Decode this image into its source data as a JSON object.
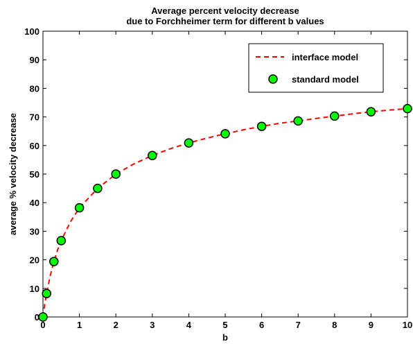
{
  "chart_data": {
    "type": "line",
    "title": [
      "Average percent velocity decrease",
      "due to Forchheimer term for different b values"
    ],
    "xlabel": "b",
    "ylabel": "average % velocity decrease",
    "xlim": [
      0,
      10
    ],
    "ylim": [
      0,
      100
    ],
    "xticks": [
      0,
      1,
      2,
      3,
      4,
      5,
      6,
      7,
      8,
      9,
      10
    ],
    "yticks": [
      0,
      10,
      20,
      30,
      40,
      50,
      60,
      70,
      80,
      90,
      100
    ],
    "grid": false,
    "legend_position": "top-right",
    "series": [
      {
        "name": "interface model",
        "style": "dashed-line",
        "color": "#ff0000",
        "x": [
          0,
          0.05,
          0.1,
          0.2,
          0.3,
          0.4,
          0.5,
          0.75,
          1,
          1.5,
          2,
          2.5,
          3,
          3.5,
          4,
          4.5,
          5,
          5.5,
          6,
          6.5,
          7,
          7.5,
          8,
          8.5,
          9,
          9.5,
          10
        ],
        "y": [
          0,
          4.5,
          8.2,
          14.5,
          19.4,
          23.4,
          26.7,
          33.2,
          38.2,
          45.0,
          50.0,
          53.6,
          56.5,
          58.9,
          60.9,
          62.6,
          64.1,
          65.5,
          66.7,
          67.8,
          68.6,
          69.5,
          70.3,
          71.1,
          71.8,
          72.4,
          72.9
        ]
      },
      {
        "name": "standard model",
        "style": "markers",
        "color": "#00ff00",
        "edge_color": "#000000",
        "x": [
          0,
          0.1,
          0.3,
          0.5,
          1,
          1.5,
          2,
          3,
          4,
          5,
          6,
          7,
          8,
          9,
          10
        ],
        "y": [
          0,
          8.2,
          19.4,
          26.7,
          38.2,
          45.0,
          50.0,
          56.5,
          60.9,
          64.1,
          66.7,
          68.6,
          70.3,
          71.8,
          72.9
        ]
      }
    ]
  }
}
